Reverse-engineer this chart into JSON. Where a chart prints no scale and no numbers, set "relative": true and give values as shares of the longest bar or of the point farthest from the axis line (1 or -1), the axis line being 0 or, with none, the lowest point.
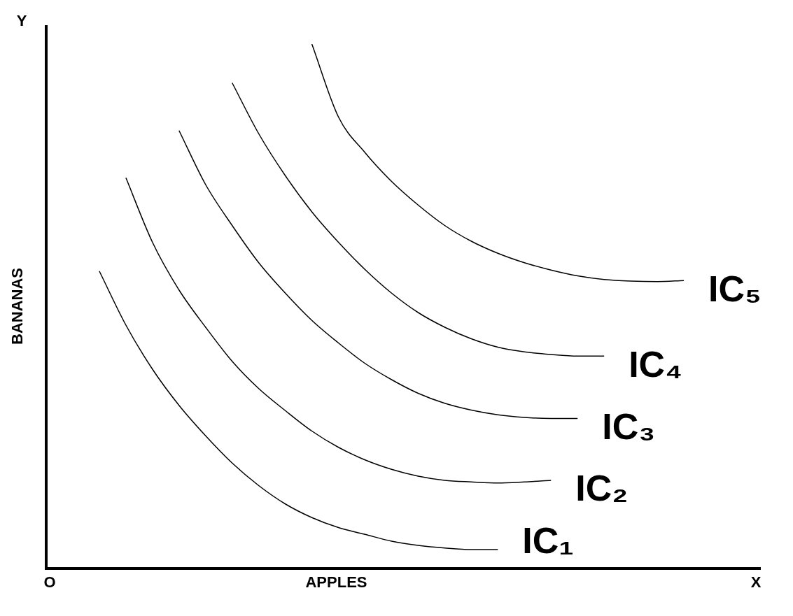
{
  "chart_data": {
    "type": "line",
    "relative": true,
    "xlabel": "APPLES",
    "ylabel": "BANANAS",
    "legend": false,
    "grid": false,
    "marker": "none",
    "annotations": [
      "O",
      "X",
      "Y"
    ],
    "categories": [
      null,
      null,
      null,
      null,
      null,
      null,
      null,
      null,
      null,
      null,
      null,
      null,
      null,
      null,
      null,
      null,
      null,
      null,
      null,
      null,
      null,
      null,
      null,
      null,
      null,
      null
    ],
    "series": [
      {
        "name": "IC₁",
        "color": "#000000",
        "values": [
          null,
          null,
          0.567,
          0.464,
          0.38,
          0.311,
          0.253,
          0.201,
          0.158,
          0.123,
          0.097,
          0.078,
          0.065,
          0.052,
          0.044,
          0.039,
          0.036,
          0.036,
          null,
          null,
          null,
          null,
          null,
          null,
          null,
          null
        ]
      },
      {
        "name": "IC₂",
        "color": "#000000",
        "values": [
          null,
          null,
          null,
          0.745,
          0.622,
          0.531,
          0.46,
          0.395,
          0.343,
          0.301,
          0.262,
          0.231,
          0.207,
          0.189,
          0.176,
          0.168,
          0.165,
          0.163,
          0.165,
          0.168,
          null,
          null,
          null,
          null,
          null,
          null
        ]
      },
      {
        "name": "IC₃",
        "color": "#000000",
        "values": [
          null,
          null,
          null,
          null,
          null,
          0.835,
          0.732,
          0.654,
          0.583,
          0.525,
          0.473,
          0.43,
          0.391,
          0.36,
          0.334,
          0.315,
          0.302,
          0.293,
          0.288,
          0.286,
          0.286,
          null,
          null,
          null,
          null,
          null
        ]
      },
      {
        "name": "IC₄",
        "color": "#000000",
        "values": [
          null,
          null,
          null,
          null,
          null,
          null,
          null,
          0.926,
          0.829,
          0.749,
          0.68,
          0.622,
          0.57,
          0.525,
          0.488,
          0.46,
          0.438,
          0.422,
          0.413,
          0.408,
          0.405,
          0.405,
          null,
          null,
          null,
          null
        ]
      },
      {
        "name": "IC₅",
        "color": "#000000",
        "values": [
          null,
          null,
          null,
          null,
          null,
          null,
          null,
          null,
          null,
          null,
          1.0,
          0.861,
          0.793,
          0.738,
          0.693,
          0.654,
          0.624,
          0.601,
          0.583,
          0.569,
          0.558,
          0.551,
          0.548,
          0.547,
          0.549,
          null
        ]
      }
    ]
  }
}
